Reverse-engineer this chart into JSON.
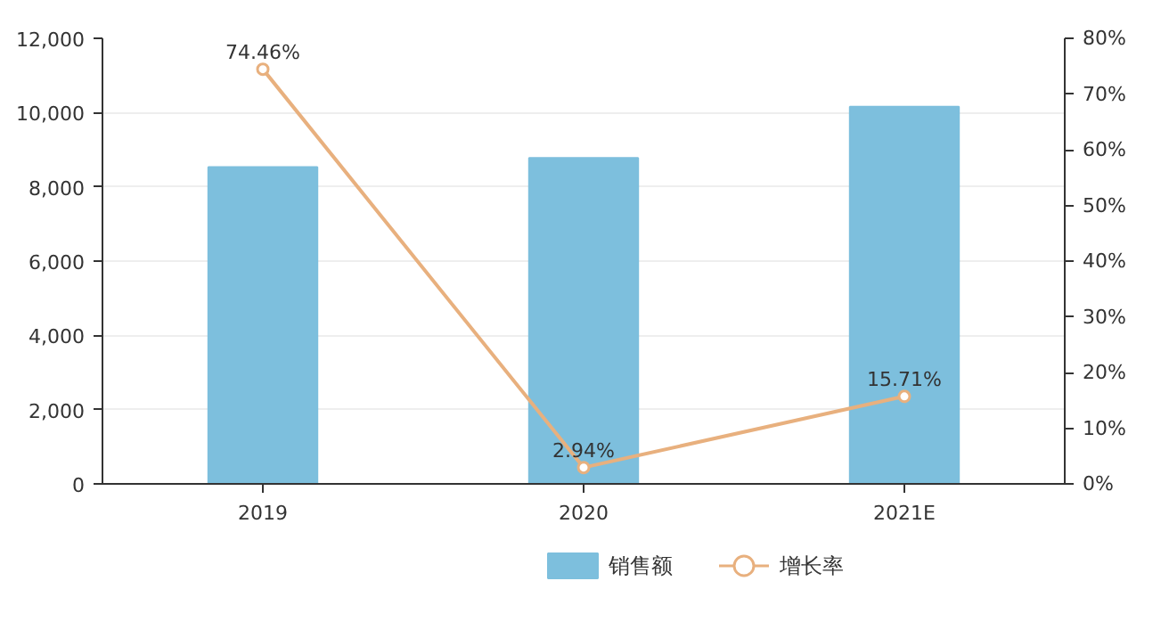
{
  "chart_data": {
    "type": "bar",
    "categories": [
      "2019",
      "2020",
      "2021E"
    ],
    "series": [
      {
        "name": "销售额",
        "color": "#7dbfdd",
        "values": [
          8530,
          8780,
          10160
        ]
      },
      {
        "name": "增长率",
        "type": "line",
        "axis": "y2",
        "color": "#e8b07e",
        "marker": "circle",
        "values": [
          74.46,
          2.94,
          15.71
        ],
        "value_labels": [
          "74.46%",
          "2.94%",
          "15.71%"
        ]
      }
    ],
    "ylim": [
      0,
      12000
    ],
    "yticks": [
      0,
      {
        "value": 2000,
        "label": "2,000"
      },
      {
        "value": 4000,
        "label": "4,000"
      },
      {
        "value": 6000,
        "label": "6,000"
      },
      {
        "value": 8000,
        "label": "8,000"
      },
      {
        "value": 10000,
        "label": "10,000"
      },
      {
        "value": 12000,
        "label": "12,000"
      }
    ],
    "y2lim": [
      0,
      80
    ],
    "y2ticks": [
      {
        "value": 0,
        "label": "0%"
      },
      {
        "value": 10,
        "label": "10%"
      },
      {
        "value": 20,
        "label": "20%"
      },
      {
        "value": 30,
        "label": "30%"
      },
      {
        "value": 40,
        "label": "40%"
      },
      {
        "value": 50,
        "label": "50%"
      },
      {
        "value": 60,
        "label": "60%"
      },
      {
        "value": 70,
        "label": "70%"
      },
      {
        "value": 80,
        "label": "80%"
      }
    ],
    "grid": "y",
    "legend": "bottom"
  }
}
